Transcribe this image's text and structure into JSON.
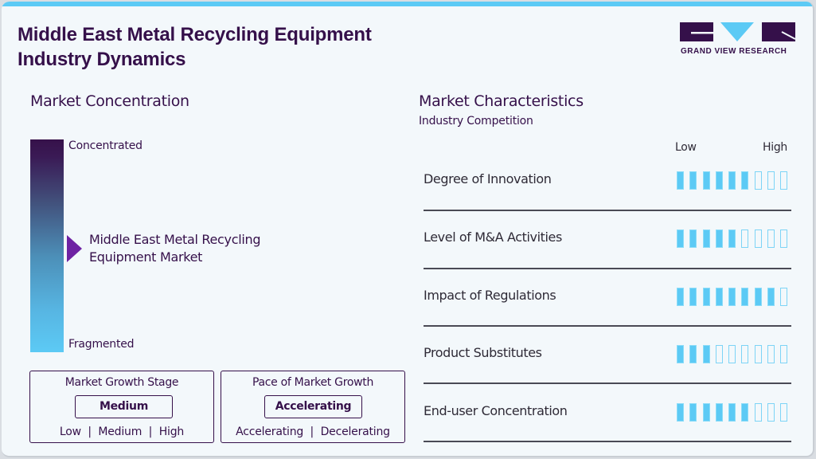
{
  "header": {
    "title_line1": "Middle East Metal Recycling Equipment",
    "title_line2": "Industry Dynamics",
    "logo_text": "GRAND VIEW RESEARCH",
    "accent_color": "#5ccaf5",
    "brand_color": "#35104a"
  },
  "concentration": {
    "title": "Market Concentration",
    "top_label": "Concentrated",
    "bottom_label": "Fragmented",
    "market_line1": "Middle East Metal Recycling",
    "market_line2": "Equipment Market",
    "pointer_color": "#6e22a3"
  },
  "growth_stage": {
    "title": "Market Growth Stage",
    "value": "Medium",
    "options": "Low  |  Medium  |  High"
  },
  "growth_pace": {
    "title": "Pace of Market Growth",
    "value": "Accelerating",
    "options": "Accelerating  |  Decelerating"
  },
  "characteristics": {
    "title": "Market Characteristics",
    "subtitle": "Industry Competition",
    "scale_low": "Low",
    "scale_high": "High",
    "max_level": 9,
    "rows": [
      {
        "label": "Degree of Innovation",
        "level": 6
      },
      {
        "label": "Level of M&A Activities",
        "level": 5
      },
      {
        "label": "Impact of Regulations",
        "level": 8
      },
      {
        "label": "Product Substitutes",
        "level": 3
      },
      {
        "label": "End-user Concentration",
        "level": 6
      }
    ]
  }
}
